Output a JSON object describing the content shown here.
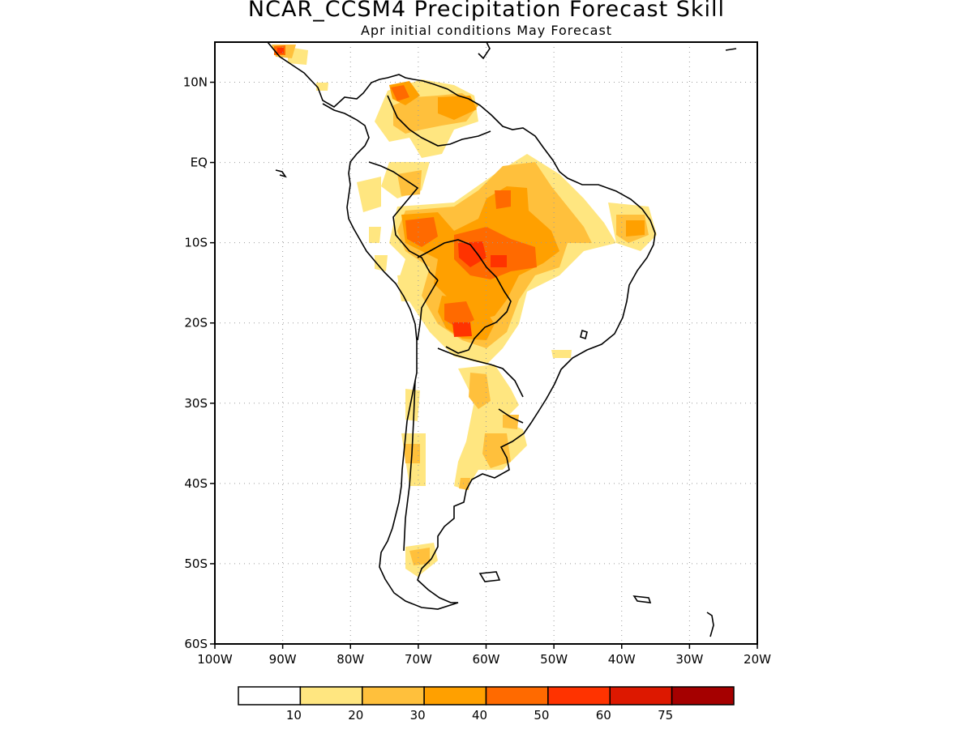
{
  "title": "NCAR_CCSM4 Precipitation Forecast Skill",
  "subtitle": "Apr initial conditions  May Forecast",
  "map": {
    "region": "South America",
    "lon_range": [
      -100,
      -20
    ],
    "lat_range": [
      -60,
      15
    ],
    "grid": "dotted",
    "lat_ticks": [
      {
        "value": 10,
        "label": "10N"
      },
      {
        "value": 0,
        "label": "EQ"
      },
      {
        "value": -10,
        "label": "10S"
      },
      {
        "value": -20,
        "label": "20S"
      },
      {
        "value": -30,
        "label": "30S"
      },
      {
        "value": -40,
        "label": "40S"
      },
      {
        "value": -50,
        "label": "50S"
      },
      {
        "value": -60,
        "label": "60S"
      }
    ],
    "lon_ticks": [
      {
        "value": -100,
        "label": "100W"
      },
      {
        "value": -90,
        "label": "90W"
      },
      {
        "value": -80,
        "label": "80W"
      },
      {
        "value": -70,
        "label": "70W"
      },
      {
        "value": -60,
        "label": "60W"
      },
      {
        "value": -50,
        "label": "50W"
      },
      {
        "value": -40,
        "label": "40W"
      },
      {
        "value": -30,
        "label": "30W"
      },
      {
        "value": -20,
        "label": "20W"
      }
    ]
  },
  "colorbar": {
    "colors": [
      "#ffffff",
      "#ffe680",
      "#ffc03c",
      "#ffa000",
      "#ff6a00",
      "#ff3300",
      "#dd1800",
      "#a50000"
    ],
    "labels": [
      "10",
      "20",
      "30",
      "40",
      "50",
      "60",
      "75"
    ]
  }
}
